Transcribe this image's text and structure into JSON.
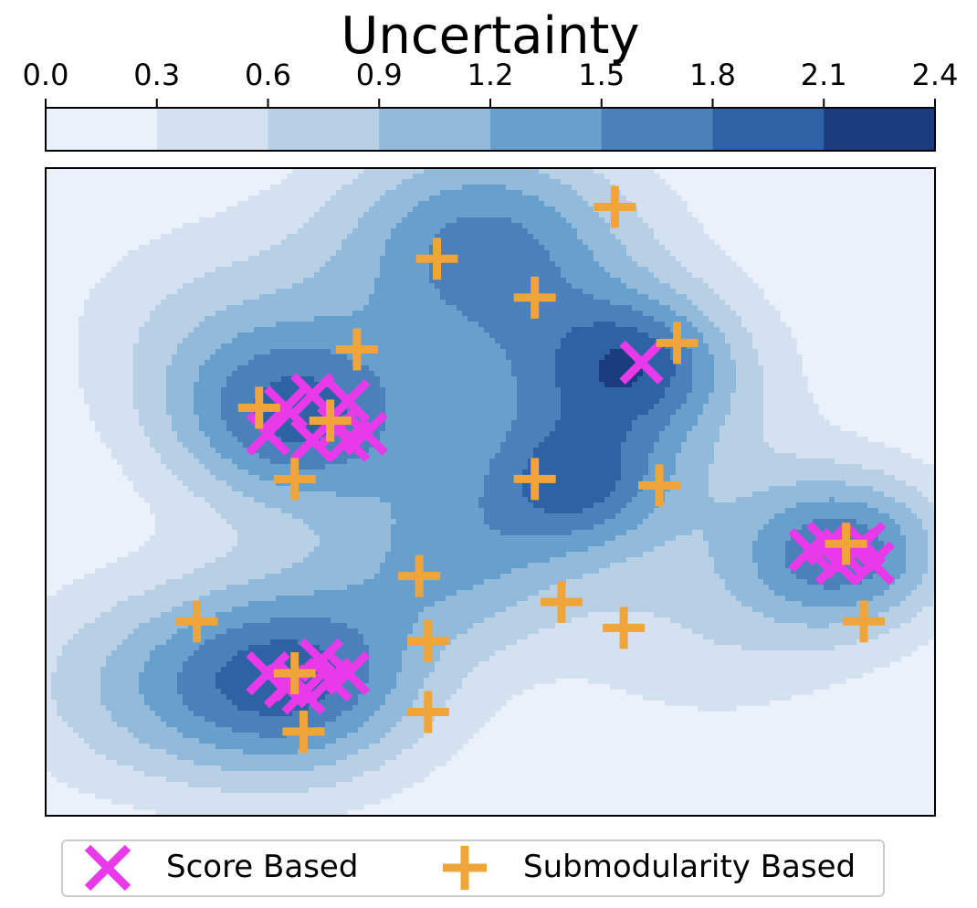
{
  "chart_data": {
    "type": "scatter",
    "title": "Uncertainty",
    "xlabel": "",
    "ylabel": "",
    "colorbar": {
      "ticks": [
        "0.0",
        "0.3",
        "0.6",
        "0.9",
        "1.2",
        "1.5",
        "1.8",
        "2.1",
        "2.4"
      ],
      "levels": [
        0,
        0.3,
        0.6,
        0.9,
        1.2,
        1.5,
        1.8,
        2.1,
        2.4
      ],
      "colors": [
        "#eaf1fa",
        "#d3e1f1",
        "#b8d0e6",
        "#91badb",
        "#67a0cd",
        "#4a81bb",
        "#2d62a4",
        "#1b3c7e"
      ]
    },
    "background_field": {
      "type": "contourf",
      "peaks": [
        {
          "x": 0.28,
          "y": 0.61,
          "amp": 1.55,
          "sigma": 0.1
        },
        {
          "x": 0.28,
          "y": 0.21,
          "amp": 1.75,
          "sigma": 0.11
        },
        {
          "x": 0.9,
          "y": 0.41,
          "amp": 1.55,
          "sigma": 0.085
        },
        {
          "x": 0.67,
          "y": 0.7,
          "amp": 0.95,
          "sigma": 0.07
        },
        {
          "x": 0.6,
          "y": 0.51,
          "amp": 0.95,
          "sigma": 0.07
        },
        {
          "x": 0.49,
          "y": 0.89,
          "amp": 1.45,
          "sigma": 0.12
        },
        {
          "x": 0.61,
          "y": 0.64,
          "amp": 1.2,
          "sigma": 0.14
        },
        {
          "x": 0.46,
          "y": 0.4,
          "amp": 1.0,
          "sigma": 0.1
        },
        {
          "x": 0.1,
          "y": 0.2,
          "amp": 0.7,
          "sigma": 0.12
        },
        {
          "x": 0.2,
          "y": 0.75,
          "amp": 0.6,
          "sigma": 0.13
        },
        {
          "x": 0.75,
          "y": 0.3,
          "amp": 0.5,
          "sigma": 0.13
        }
      ]
    },
    "series": [
      {
        "name": "Score Based",
        "marker": "x",
        "color": "#e83ae8",
        "points": [
          [
            0.27,
            0.63
          ],
          [
            0.3,
            0.65
          ],
          [
            0.34,
            0.64
          ],
          [
            0.25,
            0.59
          ],
          [
            0.33,
            0.6
          ],
          [
            0.36,
            0.59
          ],
          [
            0.3,
            0.58
          ],
          [
            0.34,
            0.58
          ],
          [
            0.25,
            0.22
          ],
          [
            0.28,
            0.21
          ],
          [
            0.31,
            0.24
          ],
          [
            0.32,
            0.21
          ],
          [
            0.34,
            0.22
          ],
          [
            0.29,
            0.19
          ],
          [
            0.27,
            0.2
          ],
          [
            0.67,
            0.7
          ],
          [
            0.86,
            0.41
          ],
          [
            0.88,
            0.42
          ],
          [
            0.9,
            0.4
          ],
          [
            0.92,
            0.42
          ],
          [
            0.93,
            0.39
          ],
          [
            0.89,
            0.39
          ],
          [
            0.91,
            0.41
          ]
        ]
      },
      {
        "name": "Submodularity Based",
        "marker": "+",
        "color": "#f0a53a",
        "points": [
          [
            0.44,
            0.86
          ],
          [
            0.55,
            0.8
          ],
          [
            0.64,
            0.94
          ],
          [
            0.71,
            0.73
          ],
          [
            0.35,
            0.72
          ],
          [
            0.24,
            0.63
          ],
          [
            0.32,
            0.61
          ],
          [
            0.28,
            0.52
          ],
          [
            0.55,
            0.52
          ],
          [
            0.69,
            0.51
          ],
          [
            0.42,
            0.37
          ],
          [
            0.58,
            0.33
          ],
          [
            0.17,
            0.3
          ],
          [
            0.43,
            0.27
          ],
          [
            0.28,
            0.22
          ],
          [
            0.43,
            0.16
          ],
          [
            0.29,
            0.13
          ],
          [
            0.65,
            0.29
          ],
          [
            0.9,
            0.42
          ],
          [
            0.92,
            0.3
          ]
        ]
      }
    ],
    "legend": {
      "position": "bottom",
      "entries": [
        "Score Based",
        "Submodularity Based"
      ]
    },
    "xlim": [
      0,
      1
    ],
    "ylim": [
      0,
      1
    ],
    "axis_ticks": "none"
  }
}
